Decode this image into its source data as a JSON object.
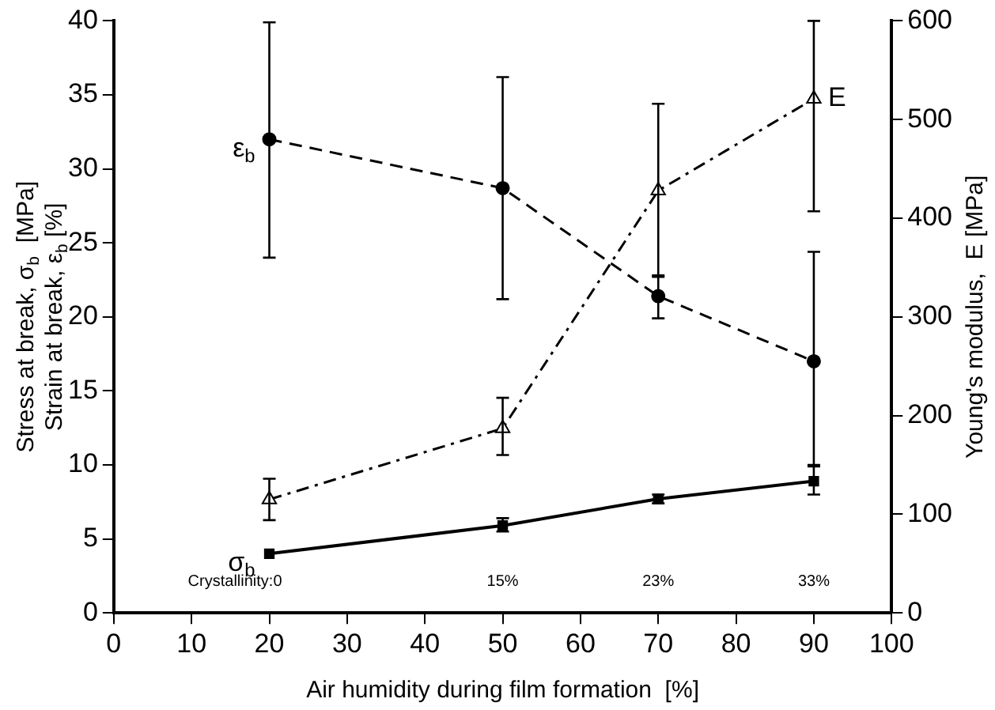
{
  "chart_data": {
    "type": "line",
    "xlabel": "Air humidity during film formation  [%]",
    "ylabel": "Stress at break, σ$_{b}$  [MPa]\nStrain at break, ε$_{b}$ [%]",
    "y2label": "Young's modulus,  E [MPa]",
    "x": [
      20,
      50,
      70,
      90
    ],
    "series": [
      {
        "name": "ε$_{b}$",
        "color": "#000000",
        "values": [
          32,
          28.7,
          21.4,
          17.0
        ],
        "errors": [
          [
            24,
            39.9
          ],
          [
            21.2,
            36.2
          ],
          [
            19.9,
            22.7
          ],
          [
            10.0,
            24.4
          ]
        ],
        "marker": "circle",
        "line_style": "dashed"
      },
      {
        "name": "σ$_{b}$",
        "color": "#000000",
        "values": [
          4.0,
          5.9,
          7.7,
          8.9
        ],
        "errors": [
          null,
          [
            5.5,
            6.4
          ],
          [
            7.4,
            8.0
          ],
          [
            8.0,
            9.9
          ]
        ],
        "marker": "square",
        "line_style": "solid"
      },
      {
        "name": "E",
        "color": "#000000",
        "values": [
          115,
          187,
          428,
          521
        ],
        "errors": [
          [
            94,
            136
          ],
          [
            160,
            218
          ],
          [
            342,
            516
          ],
          [
            407,
            600
          ]
        ],
        "marker": "triangle",
        "line_style": "dashdot",
        "axis": "y2"
      }
    ],
    "xlim": [
      0,
      100
    ],
    "xticks": [
      0,
      10,
      20,
      30,
      40,
      50,
      60,
      70,
      80,
      90,
      100
    ],
    "ylim": [
      0,
      40
    ],
    "yticks": [
      0,
      5,
      10,
      15,
      20,
      25,
      30,
      35,
      40
    ],
    "y2lim": [
      0,
      600
    ],
    "y2ticks": [
      0,
      100,
      200,
      300,
      400,
      500,
      600
    ],
    "annotations": [
      "Crystallinity:0",
      "15%",
      "23%",
      "33%"
    ],
    "grid": false,
    "legend": false
  }
}
